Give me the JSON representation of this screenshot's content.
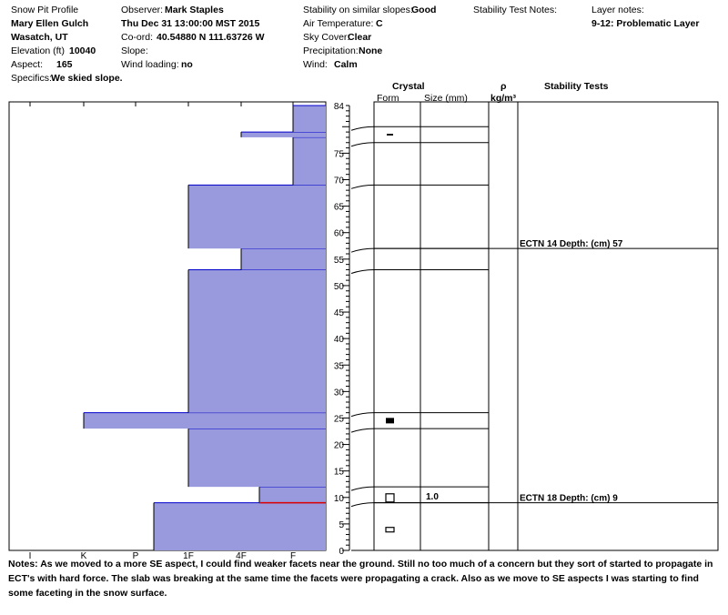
{
  "header": {
    "col1": {
      "title": "Snow Pit Profile",
      "location": "Mary Ellen Gulch",
      "region": "Wasatch, UT",
      "elevation_label": "Elevation (ft)",
      "elevation_value": "10040",
      "aspect_label": "Aspect:",
      "aspect_value": "165",
      "specifics_label": "Specifics:",
      "specifics_value": "We skied slope."
    },
    "col2": {
      "observer_label": "Observer:",
      "observer_value": "Mark Staples",
      "datetime": "Thu Dec 31 13:00:00 MST 2015",
      "coord_label": "Co-ord:",
      "coord_value": "40.54880 N 111.63726 W",
      "slope_label": "Slope:",
      "slope_value": "",
      "wind_loading_label": "Wind loading:",
      "wind_loading_value": "no"
    },
    "col3": {
      "stability_label": "Stability on similar slopes:",
      "stability_value": "Good",
      "air_temp_label": "Air Temperature:",
      "air_temp_value": "C",
      "sky_label": "Sky Cover:",
      "sky_value": "Clear",
      "precip_label": "Precipitation:",
      "precip_value": "None",
      "wind_label": "Wind:",
      "wind_value": "Calm"
    },
    "col4": {
      "stability_notes_label": "Stability Test Notes:"
    },
    "col5": {
      "layer_notes_label": "Layer notes:",
      "layer_notes_value": "9-12: Problematic Layer"
    }
  },
  "table_headers": {
    "crystal": "Crystal",
    "form": "Form",
    "size": "Size (mm)",
    "rho": "ρ",
    "density_unit": "kg/m³",
    "stability_tests": "Stability Tests"
  },
  "colors": {
    "hardness_fill": "#9999dd",
    "layer_line": "#0000cc",
    "problem_line": "#dd0000",
    "grid": "#000000"
  },
  "chart_data": {
    "type": "bar",
    "orientation": "horizontal-step",
    "x_axis": {
      "ticks": [
        "I",
        "K",
        "P",
        "1F",
        "4F",
        "F"
      ],
      "reversed": true
    },
    "y_axis": {
      "range": [
        0,
        84
      ],
      "ticks": [
        0,
        5,
        10,
        15,
        20,
        25,
        30,
        35,
        40,
        45,
        50,
        55,
        60,
        65,
        70,
        75,
        84
      ]
    },
    "hardness_layers": [
      {
        "bottom": 0,
        "top": 9,
        "hardness": "P-"
      },
      {
        "bottom": 9,
        "top": 12,
        "hardness": "4F-"
      },
      {
        "bottom": 12,
        "top": 23,
        "hardness": "1F"
      },
      {
        "bottom": 23,
        "top": 26,
        "hardness": "K"
      },
      {
        "bottom": 26,
        "top": 53,
        "hardness": "1F"
      },
      {
        "bottom": 53,
        "top": 57,
        "hardness": "4F"
      },
      {
        "bottom": 57,
        "top": 69,
        "hardness": "1F"
      },
      {
        "bottom": 69,
        "top": 78,
        "hardness": "F"
      },
      {
        "bottom": 78,
        "top": 79,
        "hardness": "4F"
      },
      {
        "bottom": 79,
        "top": 84,
        "hardness": "F"
      }
    ],
    "problem_layer_line": 9,
    "crystal_layer_boundaries": [
      9,
      12,
      23,
      26,
      53,
      57,
      69,
      77,
      80
    ],
    "crystals": [
      {
        "depth": 4,
        "form": "mixed-forms-icon"
      },
      {
        "depth": 10,
        "form": "faceted-icon",
        "size": "1.0"
      },
      {
        "depth": 24.5,
        "form": "melt-freeze-icon"
      },
      {
        "depth": 78.5,
        "form": "surface-hoar-icon"
      }
    ],
    "stability_tests": [
      {
        "depth": 57,
        "text": "ECTN 14  Depth: (cm) 57"
      },
      {
        "depth": 9,
        "text": "ECTN 18  Depth: (cm) 9"
      }
    ]
  },
  "notes": {
    "label": "Notes:",
    "text": "As we moved to a more SE aspect, I could find weaker facets near the ground. Still no too much of a concern but they sort of started to propagate in ECT's with hard force. The slab was breaking at the same time the facets were propagating a crack. Also as we move to SE aspects I was starting to find some faceting in the snow surface."
  }
}
